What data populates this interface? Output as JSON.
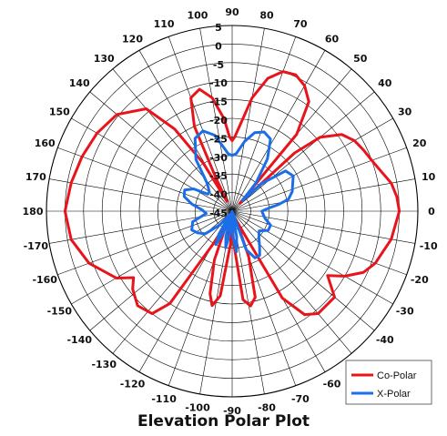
{
  "chart_data": {
    "type": "polar-line",
    "title": "Elevation Polar Plot",
    "radial_axis": {
      "min": -45,
      "max": 5,
      "ticks": [
        5,
        0,
        -5,
        -10,
        -15,
        -20,
        -25,
        -30,
        -35,
        -40,
        -45
      ]
    },
    "angular_ticks": [
      {
        "deg": 0,
        "label": "0"
      },
      {
        "deg": 10,
        "label": "10"
      },
      {
        "deg": 20,
        "label": "20"
      },
      {
        "deg": 30,
        "label": "30"
      },
      {
        "deg": 40,
        "label": "40"
      },
      {
        "deg": 50,
        "label": "50"
      },
      {
        "deg": 60,
        "label": "60"
      },
      {
        "deg": 70,
        "label": "70"
      },
      {
        "deg": 80,
        "label": "80"
      },
      {
        "deg": 90,
        "label": "90"
      },
      {
        "deg": 100,
        "label": "100"
      },
      {
        "deg": 110,
        "label": "110"
      },
      {
        "deg": 120,
        "label": "120"
      },
      {
        "deg": 130,
        "label": "130"
      },
      {
        "deg": 140,
        "label": "140"
      },
      {
        "deg": 150,
        "label": "150"
      },
      {
        "deg": 160,
        "label": "160"
      },
      {
        "deg": 170,
        "label": "170"
      },
      {
        "deg": 180,
        "label": "180"
      },
      {
        "deg": 190,
        "label": "-170"
      },
      {
        "deg": 200,
        "label": "-160"
      },
      {
        "deg": 210,
        "label": "-150"
      },
      {
        "deg": 220,
        "label": "-140"
      },
      {
        "deg": 230,
        "label": "-130"
      },
      {
        "deg": 240,
        "label": "-120"
      },
      {
        "deg": 250,
        "label": "-110"
      },
      {
        "deg": 260,
        "label": "-100"
      },
      {
        "deg": 270,
        "label": "-90"
      },
      {
        "deg": 280,
        "label": "-80"
      },
      {
        "deg": 290,
        "label": "-70"
      },
      {
        "deg": 300,
        "label": "-60"
      },
      {
        "deg": 310,
        "label": "-50"
      },
      {
        "deg": 320,
        "label": "-40"
      },
      {
        "deg": 330,
        "label": "-30"
      },
      {
        "deg": 340,
        "label": "-20"
      },
      {
        "deg": 350,
        "label": "-10"
      }
    ],
    "grid": true,
    "legend_position": "bottom-right",
    "series": [
      {
        "name": "Co-Polar",
        "color": "#e8141c",
        "points": [
          [
            0,
            0
          ],
          [
            5,
            -0.5
          ],
          [
            10,
            -1.5
          ],
          [
            15,
            -3.5
          ],
          [
            20,
            -5
          ],
          [
            25,
            -6
          ],
          [
            30,
            -7
          ],
          [
            35,
            -9
          ],
          [
            40,
            -14
          ],
          [
            43,
            -22
          ],
          [
            46,
            -42
          ],
          [
            50,
            -18
          ],
          [
            55,
            -9
          ],
          [
            60,
            -6
          ],
          [
            65,
            -4.5
          ],
          [
            70,
            -5
          ],
          [
            75,
            -8
          ],
          [
            80,
            -14
          ],
          [
            85,
            -22
          ],
          [
            88,
            -25
          ],
          [
            90,
            -26
          ],
          [
            92,
            -25
          ],
          [
            95,
            -20
          ],
          [
            100,
            -14
          ],
          [
            105,
            -11
          ],
          [
            110,
            -12.5
          ],
          [
            114,
            -20
          ],
          [
            116,
            -35
          ],
          [
            118,
            -42
          ],
          [
            121,
            -30
          ],
          [
            125,
            -18
          ],
          [
            130,
            -9
          ],
          [
            140,
            -4.5
          ],
          [
            150,
            -3
          ],
          [
            160,
            -2
          ],
          [
            170,
            -1
          ],
          [
            180,
            0
          ],
          [
            190,
            -1
          ],
          [
            200,
            -4
          ],
          [
            210,
            -9
          ],
          [
            214,
            -13
          ],
          [
            218,
            -11
          ],
          [
            225,
            -9
          ],
          [
            232,
            -10
          ],
          [
            236,
            -15
          ],
          [
            240,
            -35
          ],
          [
            245,
            -42
          ],
          [
            250,
            -31
          ],
          [
            255,
            -22
          ],
          [
            258,
            -19
          ],
          [
            262,
            -22
          ],
          [
            267,
            -36
          ],
          [
            270,
            -42
          ],
          [
            273,
            -36
          ],
          [
            277,
            -21
          ],
          [
            281,
            -19
          ],
          [
            285,
            -21
          ],
          [
            290,
            -32
          ],
          [
            294,
            -42
          ],
          [
            300,
            -18
          ],
          [
            305,
            -11
          ],
          [
            310,
            -9
          ],
          [
            320,
            -9
          ],
          [
            326,
            -14
          ],
          [
            330,
            -10
          ],
          [
            335,
            -6
          ],
          [
            340,
            -4
          ],
          [
            350,
            -1.5
          ],
          [
            360,
            0
          ]
        ]
      },
      {
        "name": "X-Polar",
        "color": "#1c6ee8",
        "points": [
          [
            0,
            -37
          ],
          [
            5,
            -35
          ],
          [
            8,
            -32.5
          ],
          [
            12,
            -29.5
          ],
          [
            18,
            -28
          ],
          [
            25,
            -27
          ],
          [
            30,
            -26
          ],
          [
            37,
            -27
          ],
          [
            43,
            -34
          ],
          [
            46,
            -41
          ],
          [
            50,
            -35
          ],
          [
            56,
            -28
          ],
          [
            62,
            -23
          ],
          [
            68,
            -22
          ],
          [
            74,
            -23
          ],
          [
            80,
            -26
          ],
          [
            86,
            -29.5
          ],
          [
            90,
            -30
          ],
          [
            94,
            -29.5
          ],
          [
            97,
            -28
          ],
          [
            103,
            -24
          ],
          [
            110,
            -22
          ],
          [
            117,
            -23
          ],
          [
            125,
            -28
          ],
          [
            132,
            -35
          ],
          [
            140,
            -37
          ],
          [
            145,
            -37
          ],
          [
            150,
            -33
          ],
          [
            156,
            -31
          ],
          [
            163,
            -31.5
          ],
          [
            170,
            -34
          ],
          [
            178,
            -37
          ],
          [
            185,
            -38
          ],
          [
            195,
            -34
          ],
          [
            205,
            -33
          ],
          [
            212,
            -34
          ],
          [
            220,
            -35.5
          ],
          [
            228,
            -40
          ],
          [
            235,
            -44
          ],
          [
            240,
            -38
          ],
          [
            244,
            -35
          ],
          [
            248,
            -39
          ],
          [
            252,
            -45
          ],
          [
            256,
            -38
          ],
          [
            260,
            -35
          ],
          [
            264,
            -39
          ],
          [
            268,
            -45
          ],
          [
            272,
            -38
          ],
          [
            276,
            -34
          ],
          [
            280,
            -38
          ],
          [
            284,
            -45
          ],
          [
            290,
            -34
          ],
          [
            296,
            -31
          ],
          [
            302,
            -31
          ],
          [
            308,
            -33
          ],
          [
            316,
            -35
          ],
          [
            324,
            -36
          ],
          [
            332,
            -34
          ],
          [
            340,
            -34
          ],
          [
            348,
            -36
          ],
          [
            360,
            -37
          ]
        ]
      }
    ]
  }
}
